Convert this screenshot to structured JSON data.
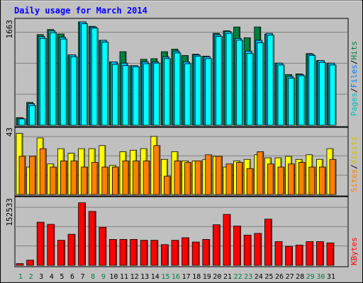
{
  "chart_data": [
    {
      "type": "bar",
      "title": "Daily usage for March 2014",
      "ylabel_max": "1663",
      "categories": [
        "1",
        "2",
        "3",
        "4",
        "5",
        "6",
        "7",
        "8",
        "9",
        "10",
        "11",
        "12",
        "13",
        "14",
        "15",
        "16",
        "17",
        "18",
        "19",
        "20",
        "21",
        "22",
        "23",
        "24",
        "25",
        "26",
        "27",
        "28",
        "29",
        "30",
        "31"
      ],
      "weekend_days": [
        "1",
        "2",
        "8",
        "9",
        "15",
        "16",
        "22",
        "23",
        "29",
        "30"
      ],
      "legend": [
        "Pages",
        "Files",
        "Hits"
      ],
      "ylim": [
        0,
        1663
      ],
      "series": [
        {
          "name": "Hits",
          "color": "#008040",
          "values": [
            120,
            360,
            1430,
            1510,
            1440,
            1110,
            1630,
            1560,
            1340,
            1000,
            1160,
            940,
            1040,
            1050,
            1160,
            1200,
            1100,
            1120,
            1090,
            1450,
            1490,
            1550,
            1380,
            1550,
            1440,
            980,
            800,
            810,
            1130,
            1020,
            980
          ]
        },
        {
          "name": "Files",
          "color": "#00c0ff",
          "values": [
            110,
            340,
            1400,
            1490,
            1390,
            1110,
            1630,
            1550,
            1340,
            1000,
            980,
            940,
            1000,
            1000,
            1080,
            1170,
            1000,
            1110,
            1080,
            1430,
            1480,
            1370,
            1170,
            1340,
            1450,
            980,
            770,
            800,
            1120,
            1020,
            980
          ]
        },
        {
          "name": "Pages",
          "color": "#00ffff",
          "values": [
            100,
            310,
            1370,
            1460,
            1360,
            1080,
            1600,
            1530,
            1310,
            960,
            940,
            920,
            970,
            980,
            1050,
            1140,
            970,
            1090,
            1050,
            1400,
            1450,
            1340,
            1130,
            1300,
            1420,
            950,
            740,
            780,
            1100,
            990,
            950
          ]
        }
      ],
      "grid": true
    },
    {
      "type": "bar",
      "ylabel_max": "43",
      "legend": [
        "Sites",
        "Visits"
      ],
      "ylim": [
        0,
        43
      ],
      "series": [
        {
          "name": "Visits",
          "color": "#ffff00",
          "values": [
            40,
            18,
            37,
            20,
            30,
            27,
            30,
            30,
            32,
            19,
            28,
            29,
            30,
            38,
            23,
            28,
            22,
            22,
            23,
            25,
            18,
            22,
            23,
            26,
            24,
            24,
            25,
            23,
            26,
            23,
            30
          ]
        },
        {
          "name": "Sites",
          "color": "#ff8000",
          "values": [
            25,
            25,
            30,
            18,
            22,
            22,
            18,
            21,
            18,
            18,
            22,
            22,
            22,
            32,
            12,
            22,
            21,
            22,
            26,
            25,
            20,
            21,
            17,
            28,
            20,
            18,
            20,
            21,
            18,
            18,
            23
          ]
        }
      ],
      "grid": true
    },
    {
      "type": "bar",
      "ylabel_max": "152533",
      "legend": [
        "KBytes"
      ],
      "ylim": [
        0,
        152533
      ],
      "series": [
        {
          "name": "KBytes",
          "color": "#ff0000",
          "values": [
            4000,
            12000,
            100000,
            95000,
            58000,
            72000,
            145000,
            125000,
            88000,
            60000,
            60000,
            60000,
            58000,
            58000,
            48000,
            58000,
            64000,
            54000,
            60000,
            94000,
            118000,
            91000,
            70000,
            74000,
            107000,
            55000,
            44000,
            47000,
            55000,
            55000,
            52000
          ]
        }
      ],
      "grid": true
    }
  ]
}
